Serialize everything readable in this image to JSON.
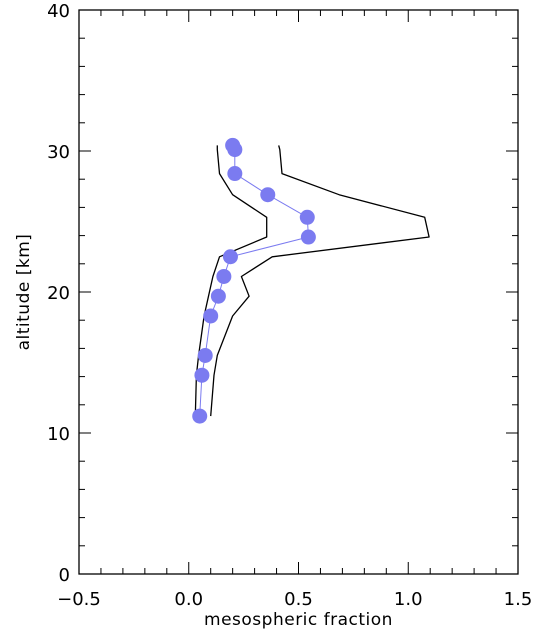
{
  "chart_data": {
    "type": "line",
    "title": "",
    "xlabel": "mesospheric fraction",
    "ylabel": "altitude [km]",
    "xlim": [
      -0.5,
      1.5
    ],
    "ylim": [
      0,
      40
    ],
    "xticks": [
      -0.5,
      0.0,
      0.5,
      1.0,
      1.5
    ],
    "xtick_labels": [
      "−0.5",
      "0.0",
      "0.5",
      "1.0",
      "1.5"
    ],
    "yticks": [
      0,
      10,
      20,
      30,
      40
    ],
    "ytick_labels": [
      "0",
      "10",
      "20",
      "30",
      "40"
    ],
    "x_minor_step": 0.1,
    "y_minor_step": 2,
    "grid": false,
    "legend": "none",
    "series": [
      {
        "role": "mean",
        "color": "#7b7bf0",
        "marker": "filled-circle",
        "points": [
          [
            0.05,
            11.2
          ],
          [
            0.06,
            14.1
          ],
          [
            0.075,
            15.5
          ],
          [
            0.1,
            18.3
          ],
          [
            0.135,
            19.7
          ],
          [
            0.16,
            21.1
          ],
          [
            0.19,
            22.5
          ],
          [
            0.545,
            23.9
          ],
          [
            0.54,
            25.3
          ],
          [
            0.36,
            26.9
          ],
          [
            0.21,
            28.4
          ],
          [
            0.21,
            30.1
          ],
          [
            0.2,
            30.4
          ]
        ]
      },
      {
        "role": "lower-bound",
        "color": "#000000",
        "marker": "none",
        "points": [
          [
            0.03,
            11.2
          ],
          [
            0.035,
            14.1
          ],
          [
            0.045,
            15.5
          ],
          [
            0.07,
            18.3
          ],
          [
            0.09,
            19.7
          ],
          [
            0.11,
            21.1
          ],
          [
            0.14,
            22.5
          ],
          [
            0.355,
            23.9
          ],
          [
            0.355,
            25.3
          ],
          [
            0.2,
            26.9
          ],
          [
            0.14,
            28.4
          ],
          [
            0.13,
            30.1
          ],
          [
            0.13,
            30.4
          ]
        ]
      },
      {
        "role": "upper-bound",
        "color": "#000000",
        "marker": "none",
        "points": [
          [
            0.1,
            11.2
          ],
          [
            0.115,
            14.1
          ],
          [
            0.13,
            15.5
          ],
          [
            0.2,
            18.3
          ],
          [
            0.275,
            19.7
          ],
          [
            0.24,
            21.1
          ],
          [
            0.38,
            22.5
          ],
          [
            1.095,
            23.9
          ],
          [
            1.075,
            25.3
          ],
          [
            0.685,
            26.9
          ],
          [
            0.425,
            28.4
          ],
          [
            0.415,
            30.1
          ],
          [
            0.41,
            30.4
          ]
        ]
      }
    ]
  }
}
